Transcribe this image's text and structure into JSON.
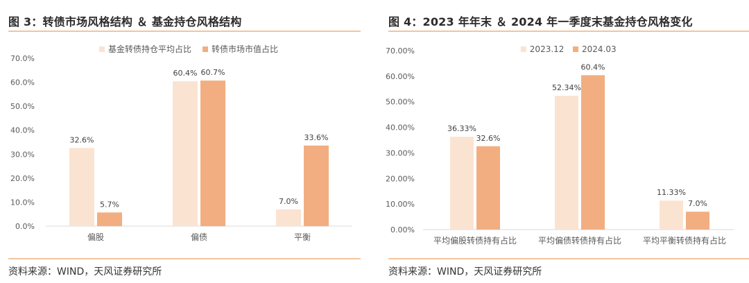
{
  "panels": [
    {
      "title": "图 3：转债市场风格结构 ＆ 基金持仓风格结构",
      "source": "资料来源：WIND，天风证券研究所"
    },
    {
      "title": "图 4：2023 年年末 ＆ 2024 年一季度末基金持仓风格变化",
      "source": "资料来源：WIND，天风证券研究所"
    }
  ],
  "colors": {
    "series_light": "#fbe3d2",
    "series_dark": "#f2ae80",
    "rule": "#f2c49e",
    "axis": "#d9d9d9",
    "text": "#595959"
  },
  "chart_data": [
    {
      "type": "bar",
      "title": "",
      "xlabel": "",
      "ylabel": "",
      "categories": [
        "偏股",
        "偏债",
        "平衡"
      ],
      "series": [
        {
          "name": "基金转债持仓平均占比",
          "values": [
            32.6,
            60.4,
            7.0
          ],
          "labels": [
            "32.6%",
            "60.4%",
            "7.0%"
          ]
        },
        {
          "name": "转债市场市值占比",
          "values": [
            5.7,
            60.7,
            33.6
          ],
          "labels": [
            "5.7%",
            "60.7%",
            "33.6%"
          ]
        }
      ],
      "ylim": [
        0,
        70
      ],
      "yticks": [
        "0.0%",
        "10.0%",
        "20.0%",
        "30.0%",
        "40.0%",
        "50.0%",
        "60.0%",
        "70.0%"
      ],
      "grid": false,
      "legend": "top-center"
    },
    {
      "type": "bar",
      "title": "",
      "xlabel": "",
      "ylabel": "",
      "categories": [
        "平均偏股转债持有占比",
        "平均偏债转债持有占比",
        "平均平衡转债持有占比"
      ],
      "series": [
        {
          "name": "2023.12",
          "values": [
            36.33,
            52.34,
            11.33
          ],
          "labels": [
            "36.33%",
            "52.34%",
            "11.33%"
          ]
        },
        {
          "name": "2024.03",
          "values": [
            32.6,
            60.4,
            7.0
          ],
          "labels": [
            "32.6%",
            "60.4%",
            "7.0%"
          ]
        }
      ],
      "ylim": [
        0,
        70
      ],
      "yticks": [
        "0.00%",
        "10.00%",
        "20.00%",
        "30.00%",
        "40.00%",
        "50.00%",
        "60.00%",
        "70.00%"
      ],
      "grid": false,
      "legend": "top-center"
    }
  ]
}
